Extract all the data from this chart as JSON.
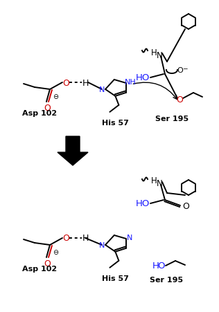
{
  "bg_color": "#ffffff",
  "colors": {
    "black": "#000000",
    "oxygen_red": "#cc0000",
    "nitrogen_blue": "#1a1aff"
  },
  "labels": {
    "asp102": "Asp 102",
    "his57": "His 57",
    "ser195": "Ser 195"
  }
}
